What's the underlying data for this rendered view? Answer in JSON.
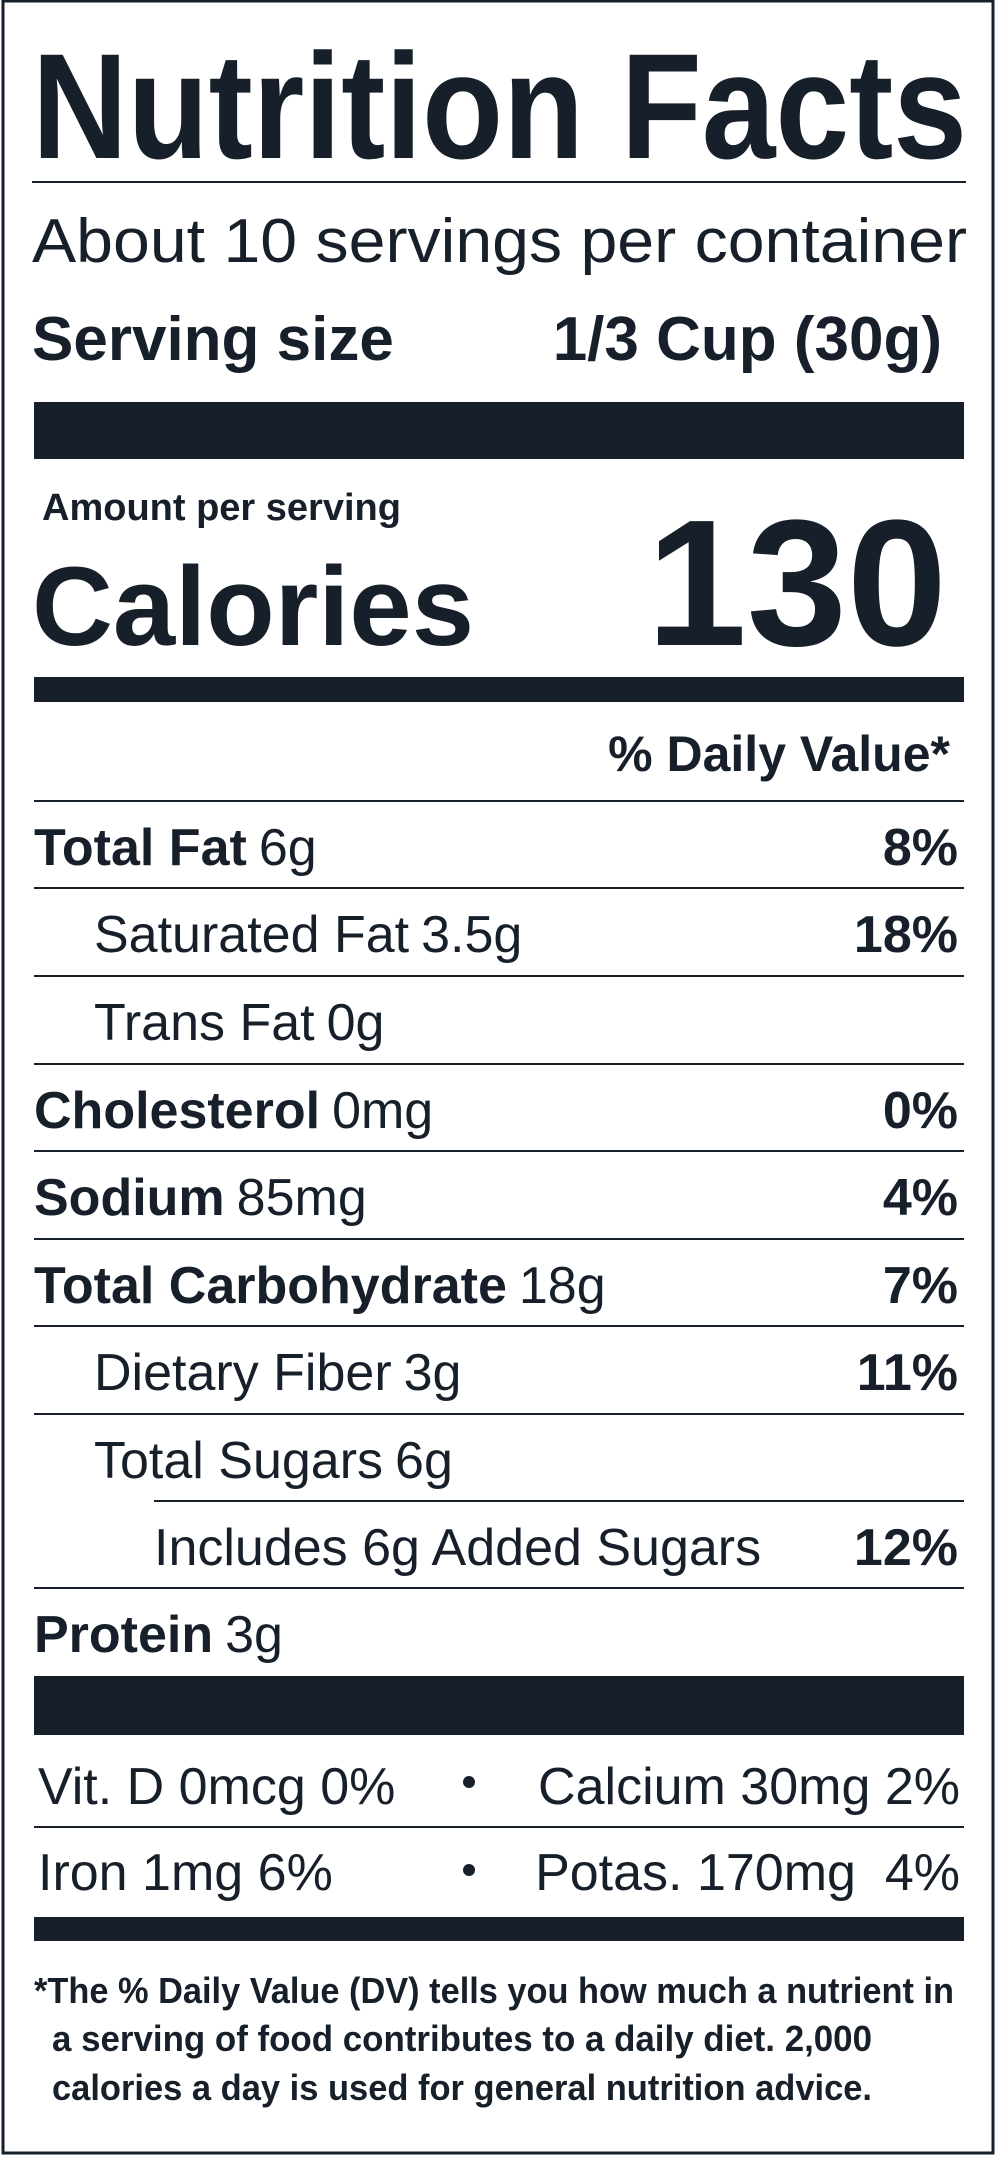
{
  "header": {
    "title": "Nutrition Facts",
    "servings": "About 10 servings per container",
    "serving_size_label": "Serving size",
    "serving_size_value": "1/3 Cup (30g)"
  },
  "calories": {
    "amount_label": "Amount per serving",
    "label": "Calories",
    "value": "130"
  },
  "dv_header": "% Daily Value*",
  "nutrients": [
    {
      "name": "Total Fat",
      "amount": "6g",
      "dv": "8%"
    },
    {
      "name": "Saturated Fat",
      "amount": "3.5g",
      "dv": "18%"
    },
    {
      "name": "Trans Fat",
      "amount": "0g"
    },
    {
      "name": "Cholesterol",
      "amount": "0mg",
      "dv": "0%"
    },
    {
      "name": "Sodium",
      "amount": "85mg",
      "dv": "4%"
    },
    {
      "name": "Total Carbohydrate",
      "amount": "18g",
      "dv": "7%"
    },
    {
      "name": "Dietary Fiber",
      "amount": "3g",
      "dv": "11%"
    },
    {
      "name": "Total Sugars",
      "amount": "6g"
    },
    {
      "name": "Includes 6g Added Sugars",
      "dv": "12%"
    },
    {
      "name": "Protein",
      "amount": "3g"
    }
  ],
  "vitamins": [
    [
      "Vit. D 0mcg 0%",
      "Calcium 30mg 2%"
    ],
    [
      "Iron 1mg 6%",
      "Potas. 170mg  4%"
    ]
  ],
  "footnote": [
    "*The % Daily Value (DV) tells you how much a nutrient in",
    "a serving of food contributes to a daily diet. 2,000",
    "calories a day is used for general nutrition advice."
  ]
}
